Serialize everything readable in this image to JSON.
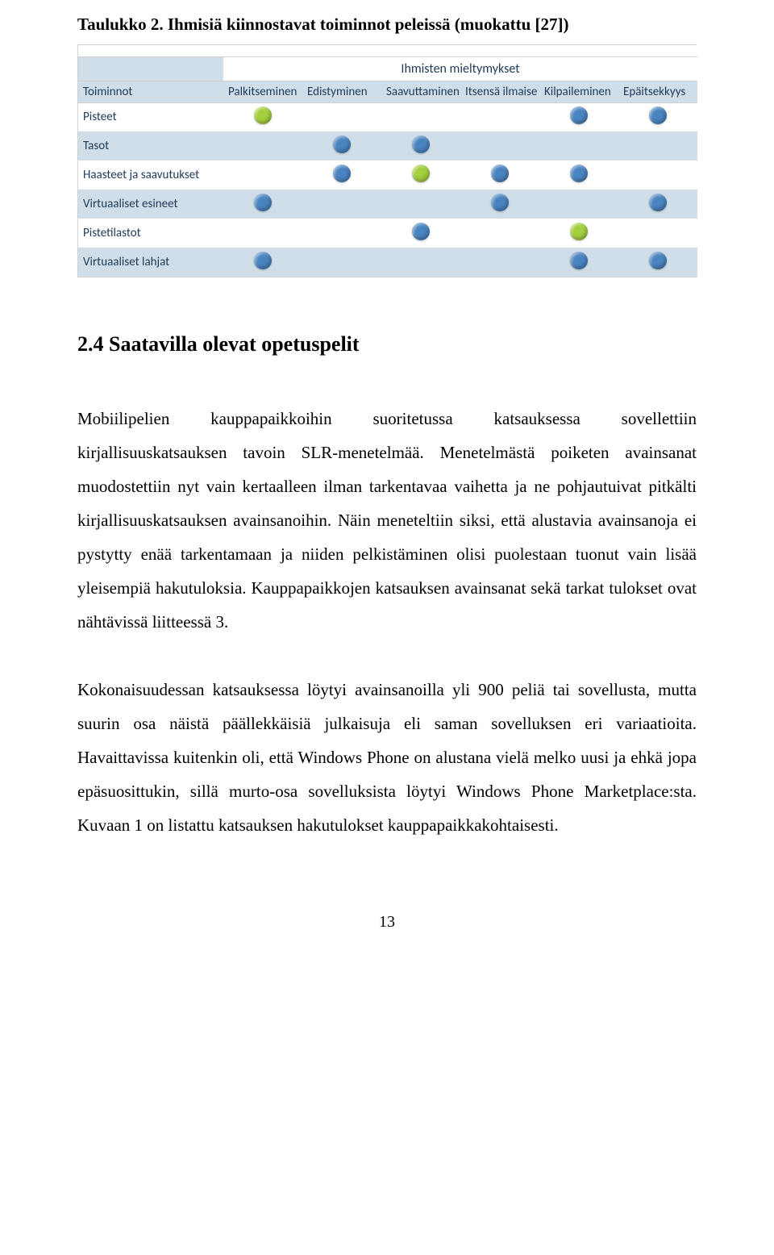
{
  "caption": "Taulukko 2. Ihmisiä kiinnostavat toiminnot peleissä (muokattu [27])",
  "table": {
    "banner_label": "Ihmisten mieltymykset",
    "row_header_title": "Toiminnot",
    "columns": [
      "Palkitseminen",
      "Edistyminen",
      "Saavuttaminen",
      "Itsensä ilmaise",
      "Kilpaileminen",
      "Epäitsekkyys"
    ],
    "rows": [
      {
        "label": "Pisteet",
        "marks": [
          "green",
          "",
          "",
          "",
          "blue",
          "blue"
        ]
      },
      {
        "label": "Tasot",
        "marks": [
          "",
          "blue",
          "blue",
          "",
          "",
          ""
        ]
      },
      {
        "label": "Haasteet ja saavutukset",
        "marks": [
          "",
          "blue",
          "green",
          "blue",
          "blue",
          ""
        ]
      },
      {
        "label": "Virtuaaliset esineet",
        "marks": [
          "blue",
          "",
          "",
          "blue",
          "",
          "blue"
        ]
      },
      {
        "label": "Pistetilastot",
        "marks": [
          "",
          "",
          "blue",
          "",
          "green",
          ""
        ]
      },
      {
        "label": "Virtuaaliset lahjat",
        "marks": [
          "blue",
          "",
          "",
          "",
          "blue",
          "blue"
        ]
      }
    ],
    "colors": {
      "header_bg": "#cfdee8",
      "light_row_bg": "#ffffff",
      "dark_row_bg": "#cfdee8",
      "text_color": "#1f3a57",
      "dot_green": "#a4cf3f",
      "dot_blue": "#4a84c0"
    }
  },
  "section_heading": "2.4 Saatavilla olevat opetuspelit",
  "paragraphs": [
    "Mobiilipelien kauppapaikkoihin suoritetussa katsauksessa sovellettiin kirjallisuuskatsauksen tavoin SLR-menetelmää. Menetelmästä poiketen avainsanat muodostettiin nyt vain kertaalleen ilman tarkentavaa vaihetta ja ne pohjautuivat pitkälti kirjallisuuskatsauksen avainsanoihin. Näin meneteltiin siksi, että alustavia avainsanoja ei pystytty enää tarkentamaan ja niiden pelkistäminen olisi puolestaan tuonut vain lisää yleisempiä hakutuloksia. Kauppapaikkojen katsauksen avainsanat sekä tarkat tulokset ovat nähtävissä liitteessä 3.",
    "Kokonaisuudessan katsauksessa löytyi avainsanoilla yli 900 peliä tai sovellusta, mutta suurin osa näistä päällekkäisiä julkaisuja eli saman sovelluksen eri variaatioita. Havaittavissa kuitenkin oli, että Windows Phone on alustana vielä melko uusi ja ehkä jopa epäsuosittukin, sillä murto-osa sovelluksista löytyi Windows Phone Marketplace:sta. Kuvaan 1 on listattu katsauksen hakutulokset kauppapaikkakohtaisesti."
  ],
  "page_number": "13"
}
